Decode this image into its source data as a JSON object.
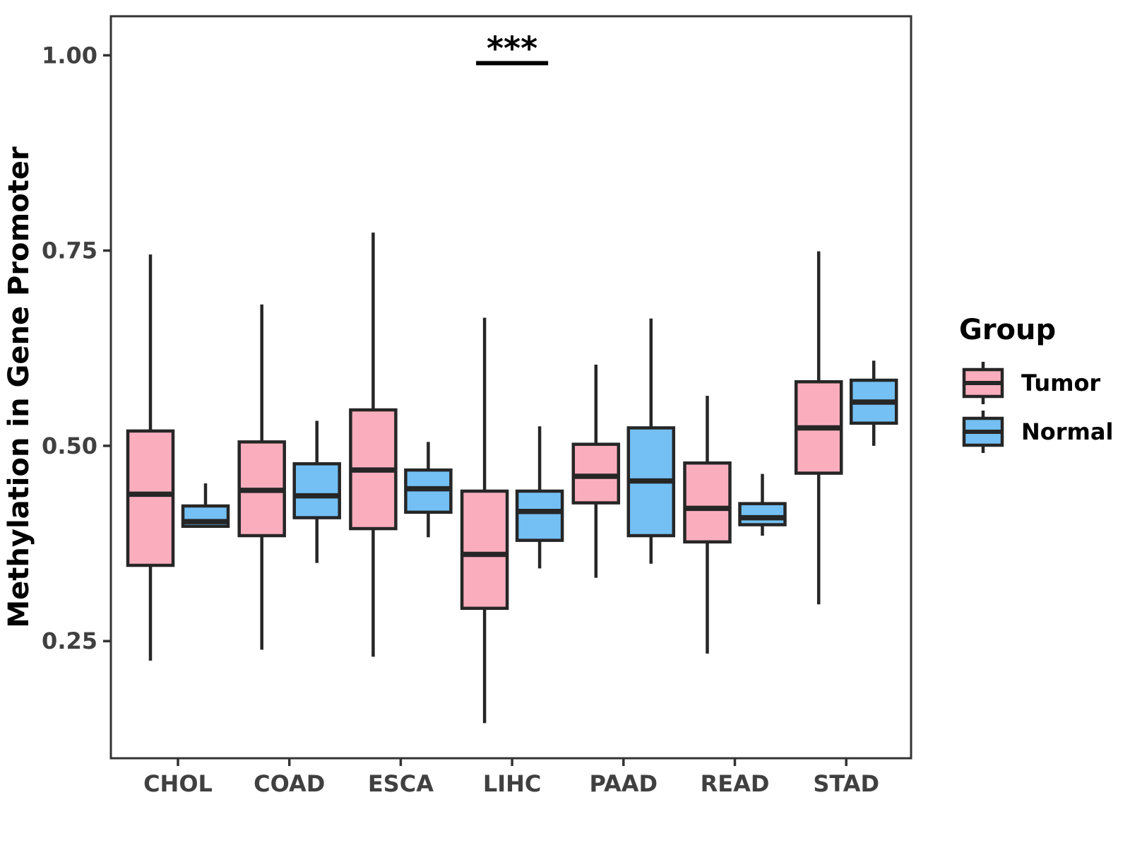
{
  "chart_data": {
    "type": "boxplot",
    "title": "",
    "xlabel": "",
    "ylabel": "Methylation in Gene Promoter",
    "categories": [
      "CHOL",
      "COAD",
      "ESCA",
      "LIHC",
      "PAAD",
      "READ",
      "STAD"
    ],
    "y_ticks": [
      0.25,
      0.5,
      0.75,
      1.0
    ],
    "y_tick_labels": [
      "0.25",
      "0.50",
      "0.75",
      "1.00"
    ],
    "ylim": [
      0.1,
      1.05
    ],
    "grid": false,
    "legend": {
      "title": "Group",
      "position": "right",
      "entries": [
        {
          "label": "Tumor",
          "color": "#FAAEBD"
        },
        {
          "label": "Normal",
          "color": "#74C0F4"
        }
      ]
    },
    "series": [
      {
        "name": "Tumor",
        "color": "#FAAEBD",
        "boxes": [
          {
            "category": "CHOL",
            "whisker_low": 0.225,
            "q1": 0.347,
            "median": 0.438,
            "q3": 0.519,
            "whisker_high": 0.745
          },
          {
            "category": "COAD",
            "whisker_low": 0.239,
            "q1": 0.385,
            "median": 0.443,
            "q3": 0.505,
            "whisker_high": 0.681
          },
          {
            "category": "ESCA",
            "whisker_low": 0.23,
            "q1": 0.394,
            "median": 0.469,
            "q3": 0.546,
            "whisker_high": 0.773
          },
          {
            "category": "LIHC",
            "whisker_low": 0.145,
            "q1": 0.292,
            "median": 0.361,
            "q3": 0.442,
            "whisker_high": 0.664
          },
          {
            "category": "PAAD",
            "whisker_low": 0.331,
            "q1": 0.427,
            "median": 0.461,
            "q3": 0.502,
            "whisker_high": 0.604
          },
          {
            "category": "READ",
            "whisker_low": 0.234,
            "q1": 0.377,
            "median": 0.42,
            "q3": 0.478,
            "whisker_high": 0.564
          },
          {
            "category": "STAD",
            "whisker_low": 0.297,
            "q1": 0.465,
            "median": 0.523,
            "q3": 0.582,
            "whisker_high": 0.749
          }
        ]
      },
      {
        "name": "Normal",
        "color": "#74C0F4",
        "boxes": [
          {
            "category": "CHOL",
            "whisker_low": 0.397,
            "q1": 0.397,
            "median": 0.403,
            "q3": 0.423,
            "whisker_high": 0.452
          },
          {
            "category": "COAD",
            "whisker_low": 0.35,
            "q1": 0.408,
            "median": 0.436,
            "q3": 0.477,
            "whisker_high": 0.532
          },
          {
            "category": "ESCA",
            "whisker_low": 0.383,
            "q1": 0.415,
            "median": 0.445,
            "q3": 0.469,
            "whisker_high": 0.505
          },
          {
            "category": "LIHC",
            "whisker_low": 0.343,
            "q1": 0.379,
            "median": 0.416,
            "q3": 0.442,
            "whisker_high": 0.525
          },
          {
            "category": "PAAD",
            "whisker_low": 0.349,
            "q1": 0.385,
            "median": 0.455,
            "q3": 0.523,
            "whisker_high": 0.663
          },
          {
            "category": "READ",
            "whisker_low": 0.385,
            "q1": 0.399,
            "median": 0.408,
            "q3": 0.426,
            "whisker_high": 0.464
          },
          {
            "category": "STAD",
            "whisker_low": 0.5,
            "q1": 0.529,
            "median": 0.556,
            "q3": 0.584,
            "whisker_high": 0.609
          }
        ]
      }
    ],
    "annotation": {
      "text": "***",
      "category": "LIHC",
      "y_bar": 0.99
    }
  },
  "colors": {
    "box_stroke": "#262626",
    "panel_border": "#333333",
    "tick_mark": "#333333",
    "tick_text": "#404040",
    "axis_title_text": "#000000",
    "annotation_text": "#000000",
    "background": "#ffffff"
  }
}
